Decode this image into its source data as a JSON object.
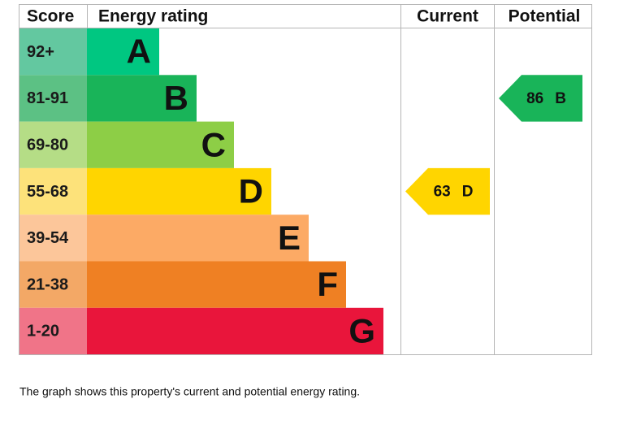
{
  "headers": [
    "Score",
    "Energy rating",
    "Current",
    "Potential"
  ],
  "bands": [
    {
      "score": "92+",
      "letter": "A",
      "color": "#00c781",
      "score_color": "#63c8a0"
    },
    {
      "score": "81-91",
      "letter": "B",
      "color": "#19b459",
      "score_color": "#5cc184"
    },
    {
      "score": "69-80",
      "letter": "C",
      "color": "#8dce46",
      "score_color": "#b5dd86"
    },
    {
      "score": "55-68",
      "letter": "D",
      "color": "#ffd500",
      "score_color": "#fde27a"
    },
    {
      "score": "39-54",
      "letter": "E",
      "color": "#fcaa65",
      "score_color": "#fcc69a"
    },
    {
      "score": "21-38",
      "letter": "F",
      "color": "#ef8023",
      "score_color": "#f3a866"
    },
    {
      "score": "1-20",
      "letter": "G",
      "color": "#e9153b",
      "score_color": "#f07488"
    }
  ],
  "current": {
    "value": 63,
    "letter": "D"
  },
  "potential": {
    "value": 86,
    "letter": "B"
  },
  "note": "The graph shows this property's current and potential energy rating."
}
